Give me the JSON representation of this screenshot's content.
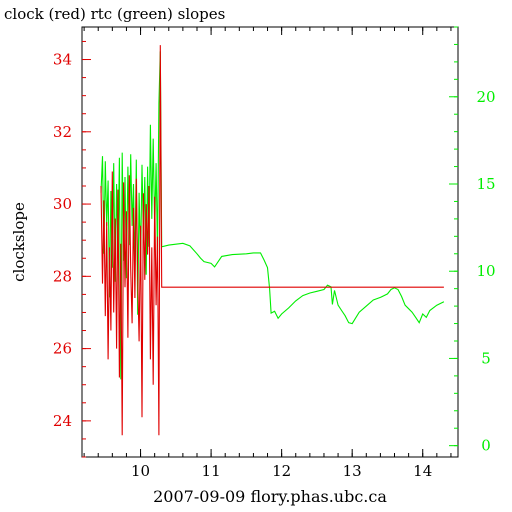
{
  "chart_data": {
    "type": "line",
    "title": "clock (red) rtc (green) slopes",
    "xlabel": "2007-09-09 flory.phas.ubc.ca",
    "ylabel": "clockslope",
    "xlim": [
      9.17,
      14.5
    ],
    "ylim_left": [
      23.0,
      34.9
    ],
    "ylim_right": [
      -0.65,
      24.0
    ],
    "x_ticks": [
      10,
      11,
      12,
      13,
      14
    ],
    "y_left_ticks": [
      24,
      26,
      28,
      30,
      32,
      34
    ],
    "y_right_ticks": [
      0,
      5,
      10,
      15,
      20
    ],
    "grid": false,
    "series": [
      {
        "name": "clock",
        "axis": "left",
        "color": "#e00000",
        "points": [
          [
            9.44,
            30.5
          ],
          [
            9.46,
            27.8
          ],
          [
            9.48,
            30.1
          ],
          [
            9.5,
            26.9
          ],
          [
            9.52,
            29.5
          ],
          [
            9.54,
            25.7
          ],
          [
            9.56,
            28.8
          ],
          [
            9.58,
            26.5
          ],
          [
            9.6,
            30.9
          ],
          [
            9.62,
            27.0
          ],
          [
            9.64,
            29.6
          ],
          [
            9.66,
            26.0
          ],
          [
            9.68,
            30.4
          ],
          [
            9.7,
            25.2
          ],
          [
            9.72,
            28.9
          ],
          [
            9.74,
            23.6
          ],
          [
            9.76,
            30.6
          ],
          [
            9.78,
            27.7
          ],
          [
            9.8,
            29.8
          ],
          [
            9.82,
            26.3
          ],
          [
            9.84,
            30.8
          ],
          [
            9.86,
            28.2
          ],
          [
            9.88,
            26.7
          ],
          [
            9.9,
            29.9
          ],
          [
            9.92,
            27.4
          ],
          [
            9.94,
            30.7
          ],
          [
            9.96,
            28.0
          ],
          [
            9.98,
            26.2
          ],
          [
            10.0,
            29.4
          ],
          [
            10.02,
            24.1
          ],
          [
            10.04,
            30.3
          ],
          [
            10.06,
            27.9
          ],
          [
            10.08,
            30.0
          ],
          [
            10.1,
            28.6
          ],
          [
            10.12,
            30.5
          ],
          [
            10.14,
            25.7
          ],
          [
            10.16,
            28.8
          ],
          [
            10.18,
            25.0
          ],
          [
            10.2,
            30.2
          ],
          [
            10.22,
            27.2
          ],
          [
            10.24,
            29.1
          ],
          [
            10.26,
            23.6
          ],
          [
            10.28,
            34.4
          ],
          [
            10.3,
            27.7
          ],
          [
            14.3,
            27.7
          ]
        ]
      },
      {
        "name": "rtc",
        "axis": "right",
        "color": "#00ee00",
        "points": [
          [
            9.44,
            14.5
          ],
          [
            9.46,
            16.6
          ],
          [
            9.48,
            11.0
          ],
          [
            9.5,
            16.3
          ],
          [
            9.52,
            12.6
          ],
          [
            9.54,
            15.2
          ],
          [
            9.56,
            8.5
          ],
          [
            9.58,
            14.6
          ],
          [
            9.6,
            10.2
          ],
          [
            9.62,
            16.2
          ],
          [
            9.64,
            9.4
          ],
          [
            9.66,
            15.0
          ],
          [
            9.68,
            11.2
          ],
          [
            9.7,
            16.5
          ],
          [
            9.72,
            3.8
          ],
          [
            9.74,
            16.8
          ],
          [
            9.76,
            10.6
          ],
          [
            9.78,
            15.4
          ],
          [
            9.8,
            9.6
          ],
          [
            9.82,
            16.0
          ],
          [
            9.84,
            11.5
          ],
          [
            9.86,
            16.7
          ],
          [
            9.88,
            12.6
          ],
          [
            9.9,
            15.0
          ],
          [
            9.92,
            10.0
          ],
          [
            9.94,
            16.4
          ],
          [
            9.96,
            7.5
          ],
          [
            9.98,
            14.5
          ],
          [
            10.0,
            10.6
          ],
          [
            10.02,
            16.1
          ],
          [
            10.04,
            12.0
          ],
          [
            10.06,
            15.4
          ],
          [
            10.08,
            9.8
          ],
          [
            10.1,
            16.0
          ],
          [
            10.12,
            11.4
          ],
          [
            10.14,
            18.4
          ],
          [
            10.16,
            13.0
          ],
          [
            10.18,
            17.6
          ],
          [
            10.2,
            12.4
          ],
          [
            10.22,
            16.2
          ],
          [
            10.24,
            11.0
          ],
          [
            10.26,
            19.6
          ],
          [
            10.28,
            22.6
          ],
          [
            10.3,
            11.4
          ],
          [
            10.4,
            11.5
          ],
          [
            10.5,
            11.55
          ],
          [
            10.6,
            11.6
          ],
          [
            10.7,
            11.45
          ],
          [
            10.8,
            11.0
          ],
          [
            10.85,
            10.75
          ],
          [
            10.9,
            10.55
          ],
          [
            10.95,
            10.5
          ],
          [
            11.0,
            10.45
          ],
          [
            11.05,
            10.25
          ],
          [
            11.1,
            10.55
          ],
          [
            11.15,
            10.85
          ],
          [
            11.3,
            10.95
          ],
          [
            11.5,
            11.0
          ],
          [
            11.6,
            11.05
          ],
          [
            11.7,
            11.05
          ],
          [
            11.75,
            10.65
          ],
          [
            11.8,
            10.2
          ],
          [
            11.83,
            9.0
          ],
          [
            11.85,
            7.6
          ],
          [
            11.9,
            7.7
          ],
          [
            11.95,
            7.3
          ],
          [
            12.0,
            7.55
          ],
          [
            12.1,
            7.9
          ],
          [
            12.2,
            8.3
          ],
          [
            12.3,
            8.6
          ],
          [
            12.4,
            8.75
          ],
          [
            12.5,
            8.85
          ],
          [
            12.6,
            8.95
          ],
          [
            12.65,
            9.2
          ],
          [
            12.7,
            9.1
          ],
          [
            12.72,
            8.1
          ],
          [
            12.75,
            8.9
          ],
          [
            12.8,
            8.05
          ],
          [
            12.85,
            7.75
          ],
          [
            12.9,
            7.45
          ],
          [
            12.95,
            7.05
          ],
          [
            13.0,
            7.0
          ],
          [
            13.1,
            7.65
          ],
          [
            13.2,
            8.0
          ],
          [
            13.3,
            8.35
          ],
          [
            13.4,
            8.5
          ],
          [
            13.5,
            8.7
          ],
          [
            13.55,
            8.95
          ],
          [
            13.6,
            9.05
          ],
          [
            13.65,
            8.95
          ],
          [
            13.7,
            8.55
          ],
          [
            13.75,
            8.05
          ],
          [
            13.8,
            7.85
          ],
          [
            13.85,
            7.65
          ],
          [
            13.9,
            7.35
          ],
          [
            13.95,
            7.05
          ],
          [
            14.0,
            7.55
          ],
          [
            14.05,
            7.35
          ],
          [
            14.1,
            7.75
          ],
          [
            14.2,
            8.05
          ],
          [
            14.3,
            8.25
          ]
        ]
      }
    ]
  }
}
